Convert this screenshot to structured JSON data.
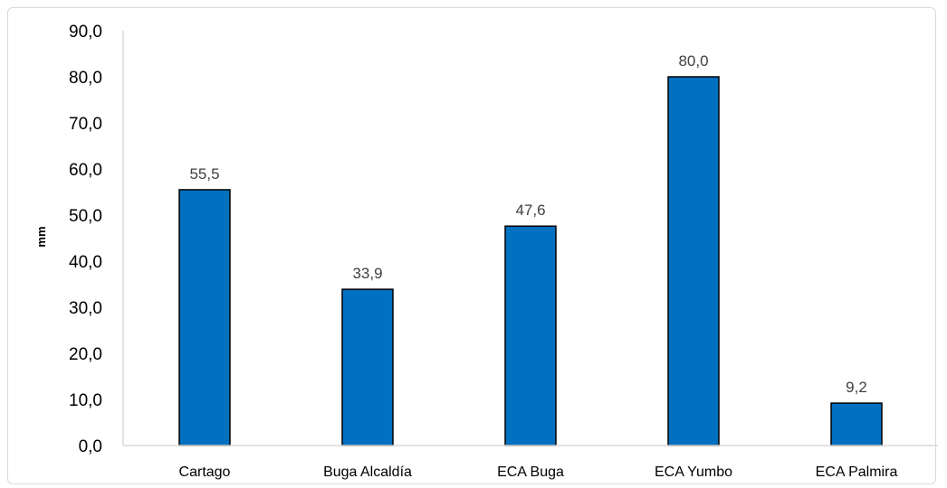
{
  "chart_data": {
    "type": "bar",
    "categories": [
      "Cartago",
      "Buga Alcaldía",
      "ECA Buga",
      "ECA Yumbo",
      "ECA Palmira"
    ],
    "values": [
      55.5,
      33.9,
      47.6,
      80.0,
      9.2
    ],
    "value_labels": [
      "55,5",
      "33,9",
      "47,6",
      "80,0",
      "9,2"
    ],
    "ylabel": "mm",
    "xlabel": "",
    "ylim": [
      0,
      90
    ],
    "yticks": [
      "0,0",
      "10,0",
      "20,0",
      "30,0",
      "40,0",
      "50,0",
      "60,0",
      "70,0",
      "80,0",
      "90,0"
    ],
    "bar_color": "#0070C0",
    "bar_edge_color": "#000000",
    "grid": false,
    "legend": "none"
  }
}
